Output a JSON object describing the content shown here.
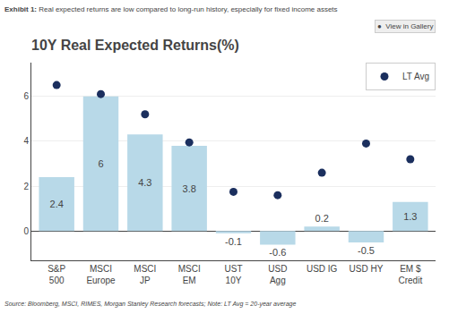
{
  "chart_data": {
    "type": "bar",
    "title": "10Y Real Expected Returns(%)",
    "annotations": [
      "Exhibit 1:",
      " Real expected returns are low compared to long-run history, especially for fixed income assets",
      "●  View in Gallery",
      "Source: Bloomberg, MSCI, RIMES, Morgan Stanley Research forecasts; Note: LT Avg = 20-year average"
    ],
    "categories": [
      "S&P\n500",
      "MSCI\nEurope",
      "MSCI\nJP",
      "MSCI\nEM",
      "UST\n10Y",
      "USD\nAgg",
      "USD IG",
      "USD HY",
      "EM $\nCredit"
    ],
    "series": [
      {
        "type": "bar",
        "color": "#b8d9e8",
        "values": [
          2.4,
          6.0,
          4.3,
          3.8,
          -0.1,
          -0.6,
          0.2,
          -0.5,
          1.3
        ],
        "data_labels": true
      },
      {
        "type": "scatter",
        "name": "LT Avg",
        "color": "#1b2f5e",
        "marker": "circle",
        "values": [
          6.5,
          6.1,
          5.2,
          3.95,
          1.75,
          1.6,
          2.6,
          3.9,
          3.2
        ]
      }
    ],
    "ylim": [
      -1.3,
      7.5
    ],
    "yticks": [
      0,
      2,
      4,
      6
    ],
    "grid": true,
    "legend": "upper right"
  }
}
